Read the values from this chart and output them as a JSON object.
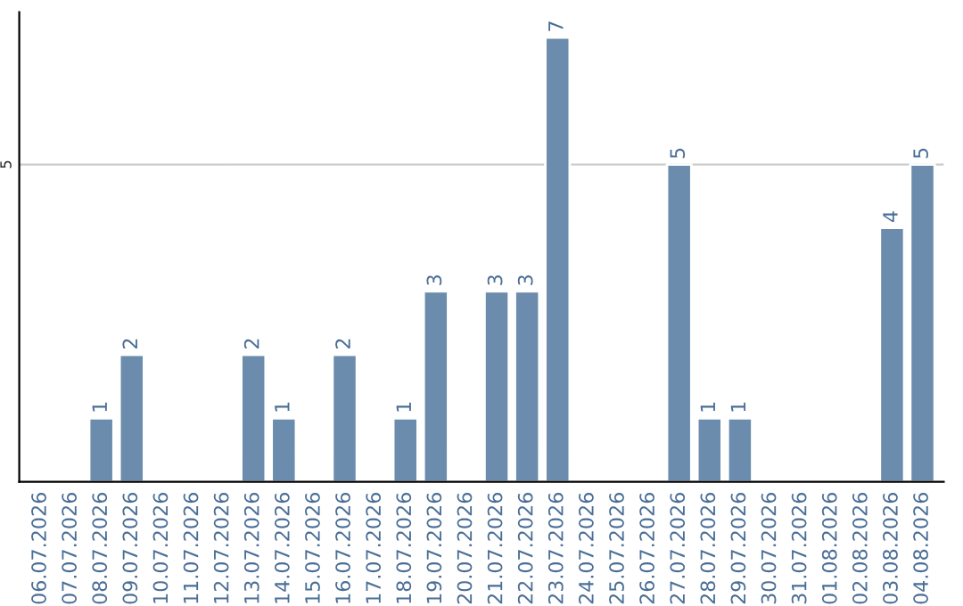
{
  "chart_data": {
    "type": "bar",
    "categories": [
      "06.07.2026",
      "07.07.2026",
      "08.07.2026",
      "09.07.2026",
      "10.07.2026",
      "11.07.2026",
      "12.07.2026",
      "13.07.2026",
      "14.07.2026",
      "15.07.2026",
      "16.07.2026",
      "17.07.2026",
      "18.07.2026",
      "19.07.2026",
      "20.07.2026",
      "21.07.2026",
      "22.07.2026",
      "23.07.2026",
      "24.07.2026",
      "25.07.2026",
      "26.07.2026",
      "27.07.2026",
      "28.07.2026",
      "29.07.2026",
      "30.07.2026",
      "31.07.2026",
      "01.08.2026",
      "02.08.2026",
      "03.08.2026",
      "04.08.2026"
    ],
    "values": [
      null,
      null,
      1,
      2,
      null,
      null,
      null,
      2,
      1,
      null,
      2,
      null,
      1,
      3,
      null,
      3,
      3,
      7,
      null,
      null,
      null,
      5,
      1,
      1,
      null,
      null,
      null,
      null,
      4,
      5
    ],
    "value_labels": [
      null,
      null,
      "1",
      "2",
      null,
      null,
      null,
      "2",
      "1",
      null,
      "2",
      null,
      "1",
      "3",
      null,
      "3",
      "3",
      "7",
      null,
      null,
      null,
      "5",
      "1",
      "1",
      null,
      null,
      null,
      null,
      "4",
      "5"
    ],
    "color": "#6b8cac",
    "ylim": [
      0,
      7.4
    ],
    "yticks": [
      5
    ],
    "grid": "y",
    "legend": false
  }
}
